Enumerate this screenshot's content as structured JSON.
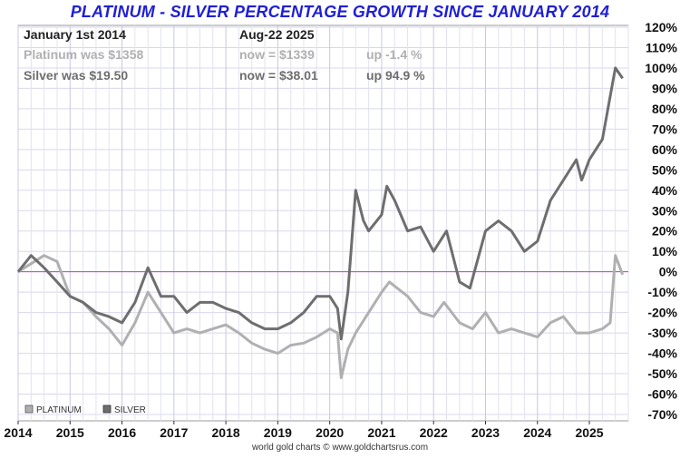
{
  "chart_data": {
    "type": "line",
    "title": "PLATINUM - SILVER PERCENTAGE GROWTH SINCE JANUARY 2014",
    "ylabel_unit": "%",
    "ylim": [
      -70,
      120
    ],
    "y_ticks": [
      "120%",
      "110%",
      "100%",
      "90%",
      "80%",
      "70%",
      "60%",
      "50%",
      "40%",
      "30%",
      "20%",
      "10%",
      "0%",
      "-10%",
      "-20%",
      "-30%",
      "-40%",
      "-50%",
      "-60%",
      "-70%"
    ],
    "x_ticks": [
      "2014",
      "2015",
      "2016",
      "2017",
      "2018",
      "2019",
      "2020",
      "2021",
      "2022",
      "2023",
      "2024",
      "2025"
    ],
    "grid": true,
    "legend_position": "bottom-left",
    "annotations": {
      "start_label": "January 1st 2014",
      "end_label": "Aug-22  2025",
      "rows": [
        {
          "was": "Platinum was $1358",
          "now": "now = $1339",
          "change": "up -1.4 %"
        },
        {
          "was": "Silver was $19.50",
          "now": "now = $38.01",
          "change": "up 94.9 %"
        }
      ]
    },
    "source": "world gold charts © www.goldchartsrus.com",
    "series": [
      {
        "name": "PLATINUM",
        "color": "#b0b0b0",
        "x": [
          2014.0,
          2014.25,
          2014.5,
          2014.75,
          2015.0,
          2015.25,
          2015.5,
          2015.75,
          2016.0,
          2016.25,
          2016.5,
          2016.75,
          2017.0,
          2017.25,
          2017.5,
          2017.75,
          2018.0,
          2018.25,
          2018.5,
          2018.75,
          2019.0,
          2019.25,
          2019.5,
          2019.75,
          2020.0,
          2020.15,
          2020.22,
          2020.35,
          2020.5,
          2020.75,
          2021.0,
          2021.15,
          2021.5,
          2021.75,
          2022.0,
          2022.2,
          2022.5,
          2022.75,
          2023.0,
          2023.25,
          2023.5,
          2023.75,
          2024.0,
          2024.25,
          2024.5,
          2024.75,
          2025.0,
          2025.25,
          2025.4,
          2025.5,
          2025.64
        ],
        "values": [
          0,
          4,
          8,
          5,
          -12,
          -15,
          -22,
          -28,
          -36,
          -25,
          -10,
          -20,
          -30,
          -28,
          -30,
          -28,
          -26,
          -30,
          -35,
          -38,
          -40,
          -36,
          -35,
          -32,
          -28,
          -30,
          -52,
          -38,
          -30,
          -20,
          -10,
          -5,
          -12,
          -20,
          -22,
          -15,
          -25,
          -28,
          -20,
          -30,
          -28,
          -30,
          -32,
          -25,
          -22,
          -30,
          -30,
          -28,
          -25,
          8,
          -1.4
        ]
      },
      {
        "name": "SILVER",
        "color": "#6e6e6e",
        "x": [
          2014.0,
          2014.25,
          2014.5,
          2014.75,
          2015.0,
          2015.25,
          2015.5,
          2015.75,
          2016.0,
          2016.25,
          2016.5,
          2016.75,
          2017.0,
          2017.25,
          2017.5,
          2017.75,
          2018.0,
          2018.25,
          2018.5,
          2018.75,
          2019.0,
          2019.25,
          2019.5,
          2019.75,
          2020.0,
          2020.15,
          2020.22,
          2020.35,
          2020.5,
          2020.65,
          2020.75,
          2021.0,
          2021.1,
          2021.25,
          2021.5,
          2021.75,
          2022.0,
          2022.25,
          2022.5,
          2022.7,
          2023.0,
          2023.25,
          2023.5,
          2023.75,
          2024.0,
          2024.25,
          2024.5,
          2024.75,
          2024.85,
          2025.0,
          2025.25,
          2025.5,
          2025.64
        ],
        "values": [
          0,
          8,
          2,
          -5,
          -12,
          -15,
          -20,
          -22,
          -25,
          -15,
          2,
          -12,
          -12,
          -20,
          -15,
          -15,
          -18,
          -20,
          -25,
          -28,
          -28,
          -25,
          -20,
          -12,
          -12,
          -18,
          -33,
          -10,
          40,
          25,
          20,
          28,
          42,
          35,
          20,
          22,
          10,
          20,
          -5,
          -8,
          20,
          25,
          20,
          10,
          15,
          35,
          45,
          55,
          45,
          55,
          65,
          100,
          94.9
        ]
      }
    ]
  }
}
